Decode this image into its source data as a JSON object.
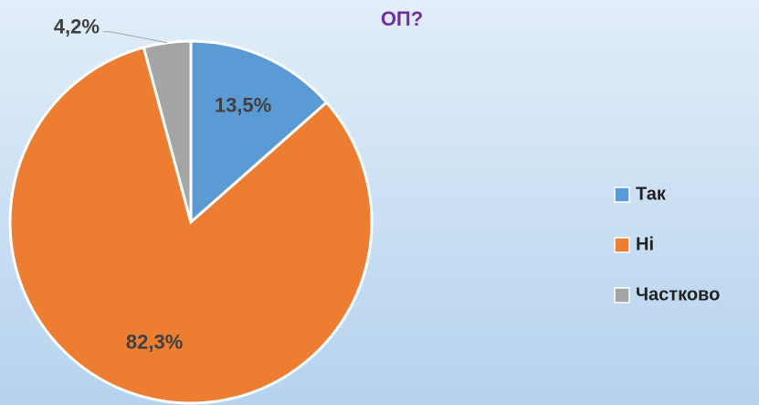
{
  "chart_data": {
    "type": "pie",
    "title": "ОП?",
    "categories": [
      "Так",
      "Ні",
      "Частково"
    ],
    "values": [
      13.5,
      82.3,
      4.2
    ],
    "value_labels": [
      "13,5%",
      "82,3%",
      "4,2%"
    ],
    "colors": [
      "#5b9bd5",
      "#ed7d31",
      "#a5a5a5"
    ],
    "legend": "right"
  }
}
